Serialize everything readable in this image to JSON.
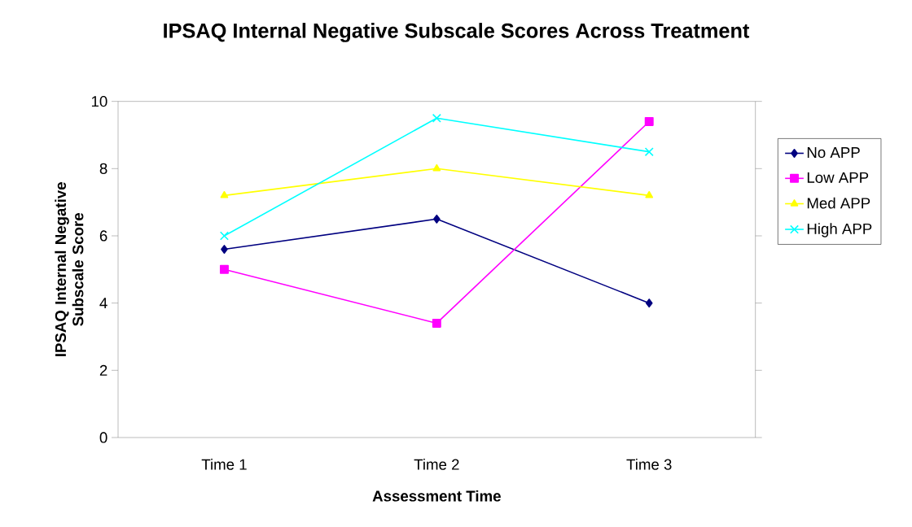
{
  "chart_data": {
    "type": "line",
    "title": "IPSAQ Internal Negative Subscale Scores Across Treatment",
    "xlabel": "Assessment Time",
    "ylabel": "IPSAQ Internal Negative Subscale Score",
    "categories": [
      "Time 1",
      "Time 2",
      "Time 3"
    ],
    "series": [
      {
        "name": "No APP",
        "color": "#000080",
        "marker": "diamond",
        "values": [
          5.6,
          6.5,
          4.0
        ]
      },
      {
        "name": "Low APP",
        "color": "#ff00ff",
        "marker": "square",
        "values": [
          5.0,
          3.4,
          9.4
        ]
      },
      {
        "name": "Med APP",
        "color": "#ffff00",
        "marker": "triangle",
        "values": [
          7.2,
          8.0,
          7.2
        ]
      },
      {
        "name": "High APP",
        "color": "#00ffff",
        "marker": "cross",
        "values": [
          6.0,
          9.5,
          8.5
        ]
      }
    ],
    "ylim": [
      0,
      10
    ],
    "yticks": [
      0,
      2,
      4,
      6,
      8,
      10
    ],
    "legend": "right",
    "line_style": "solid"
  }
}
